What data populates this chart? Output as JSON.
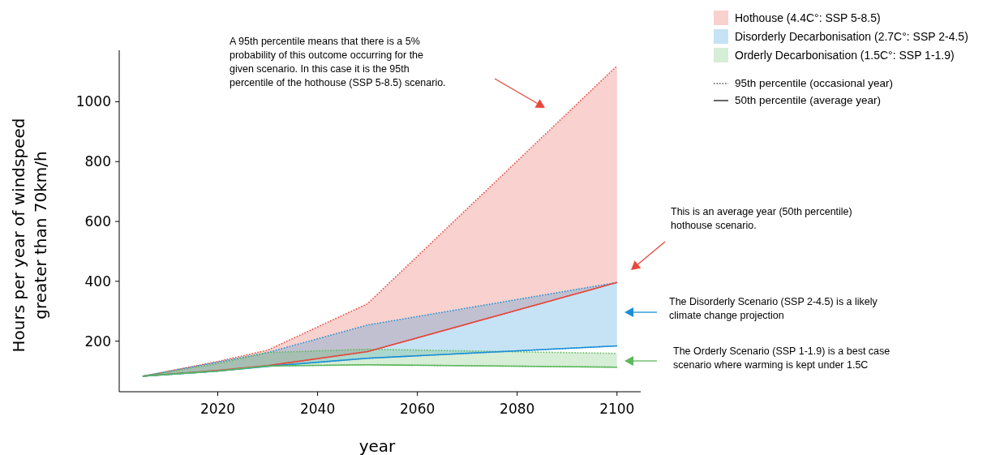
{
  "chart_data": {
    "type": "line",
    "xlabel": "year",
    "ylabel": "Hours per year of windspeed\ngreater than 70km/h",
    "x": [
      2005,
      2020,
      2030,
      2050,
      2100
    ],
    "xlim": [
      2000.25,
      2104.75
    ],
    "ylim": [
      31,
      1172
    ],
    "xticks": [
      2020,
      2040,
      2060,
      2080,
      2100
    ],
    "yticks": [
      200,
      400,
      600,
      800,
      1000
    ],
    "legend": "top right",
    "grid": false,
    "series": [
      {
        "name": "Hothouse (4.4C°:  SSP 5-8.5)",
        "color": "#e8473b",
        "values": [
          83,
          102,
          118,
          165,
          396
        ],
        "lower": [
          83,
          102,
          118,
          165,
          396
        ],
        "upper": [
          83,
          132,
          170,
          325,
          1120
        ]
      },
      {
        "name": "Disorderly Decarbonisation (2.7C°: SSP 2-4.5)",
        "color": "#1a8fd6",
        "values": [
          83,
          100,
          116,
          143,
          184
        ],
        "lower": [
          83,
          100,
          116,
          143,
          184
        ],
        "upper": [
          83,
          130,
          162,
          254,
          396
        ]
      },
      {
        "name": "Orderly Decarbonisation (1.5C°: SSP 1-1.9)",
        "color": "#5cb85c",
        "values": [
          83,
          100,
          117,
          121,
          113
        ],
        "lower": [
          83,
          100,
          117,
          121,
          113
        ],
        "upper": [
          83,
          125,
          162,
          173,
          159
        ]
      }
    ],
    "annotations": [
      "A 95th percentile means that there is a 5%\nprobability of this outcome occurring for the\ngiven scenario. In this case it is the 95th\npercentile of the hothouse (SSP 5-8.5) scenario.",
      "This is an average year (50th percentile)\nhothouse scenario.",
      "The Disorderly Scenario (SSP 2-4.5) is a likely\nclimate change projection",
      "The Orderly Scenario (SSP 1-1.9) is a best case\nscenario where warming is kept under 1.5C",
      "95th percentile (occasional year)",
      "50th percentile (average year)"
    ]
  }
}
